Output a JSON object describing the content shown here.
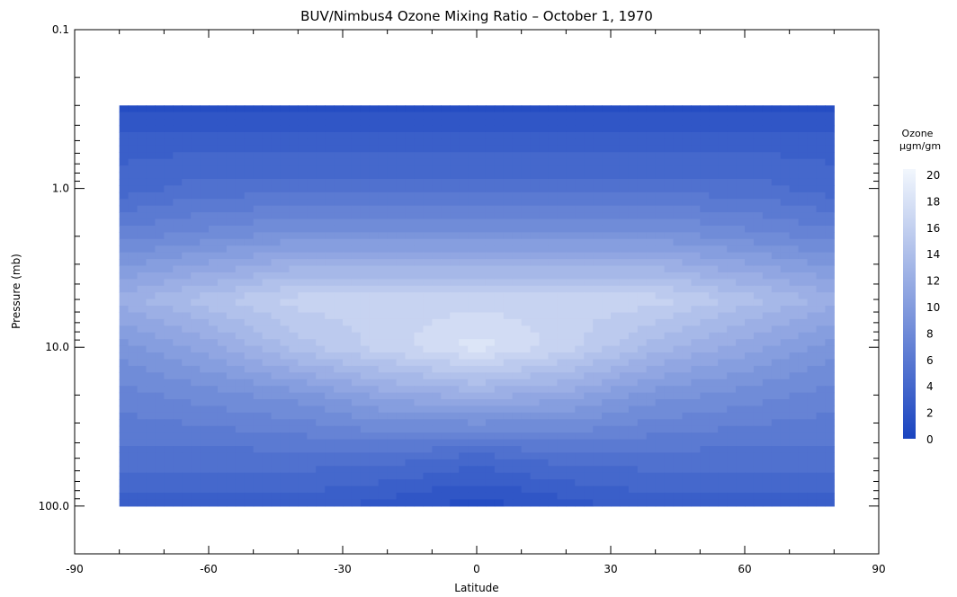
{
  "chart_data": {
    "type": "heatmap",
    "title": "BUV/Nimbus4 Ozone Mixing Ratio – October 1, 1970",
    "xlabel": "Latitude",
    "ylabel": "Pressure (mb)",
    "xlim": [
      -90,
      90
    ],
    "ylim": [
      0.1,
      200
    ],
    "y_scale": "log",
    "y_inverted": true,
    "x_ticks": [
      "-90",
      "-60",
      "-30",
      "0",
      "30",
      "60",
      "90"
    ],
    "y_ticks": [
      "0.1",
      "1.0",
      "10.0",
      "100.0"
    ],
    "data_extent": {
      "lat": [
        -80,
        80
      ],
      "pressure_mb": [
        0.3,
        100
      ]
    },
    "colorbar": {
      "title_line1": "Ozone",
      "title_line2": "µgm/gm",
      "ticks": [
        "20",
        "18",
        "16",
        "14",
        "12",
        "10",
        "8",
        "6",
        "4",
        "2",
        "0"
      ],
      "min": 0,
      "max": 20,
      "color_low": "#1a44c0",
      "color_high": "#f2f7fd"
    },
    "lat": [
      -80,
      -60,
      -40,
      -20,
      0,
      20,
      40,
      60,
      80
    ],
    "pressure": [
      0.3,
      0.5,
      1.0,
      2.0,
      5.0,
      10.0,
      20.0,
      50.0,
      100.0
    ],
    "values": [
      [
        1,
        1,
        1,
        1,
        1,
        1,
        1,
        1,
        1
      ],
      [
        3,
        3,
        3,
        3,
        3,
        3,
        3,
        3,
        3
      ],
      [
        4,
        5,
        5,
        5,
        5,
        5,
        5,
        5,
        4
      ],
      [
        7,
        8,
        9,
        9,
        9,
        9,
        9,
        8,
        7
      ],
      [
        12,
        14,
        16,
        16,
        16,
        16,
        16,
        14,
        12
      ],
      [
        9,
        11,
        14,
        16,
        18,
        16,
        13,
        11,
        9
      ],
      [
        7,
        8,
        9,
        11,
        12,
        11,
        9,
        8,
        7
      ],
      [
        5,
        5,
        5,
        5,
        4,
        5,
        5,
        5,
        5
      ],
      [
        3,
        3,
        3,
        2,
        1,
        2,
        3,
        3,
        3
      ]
    ]
  }
}
